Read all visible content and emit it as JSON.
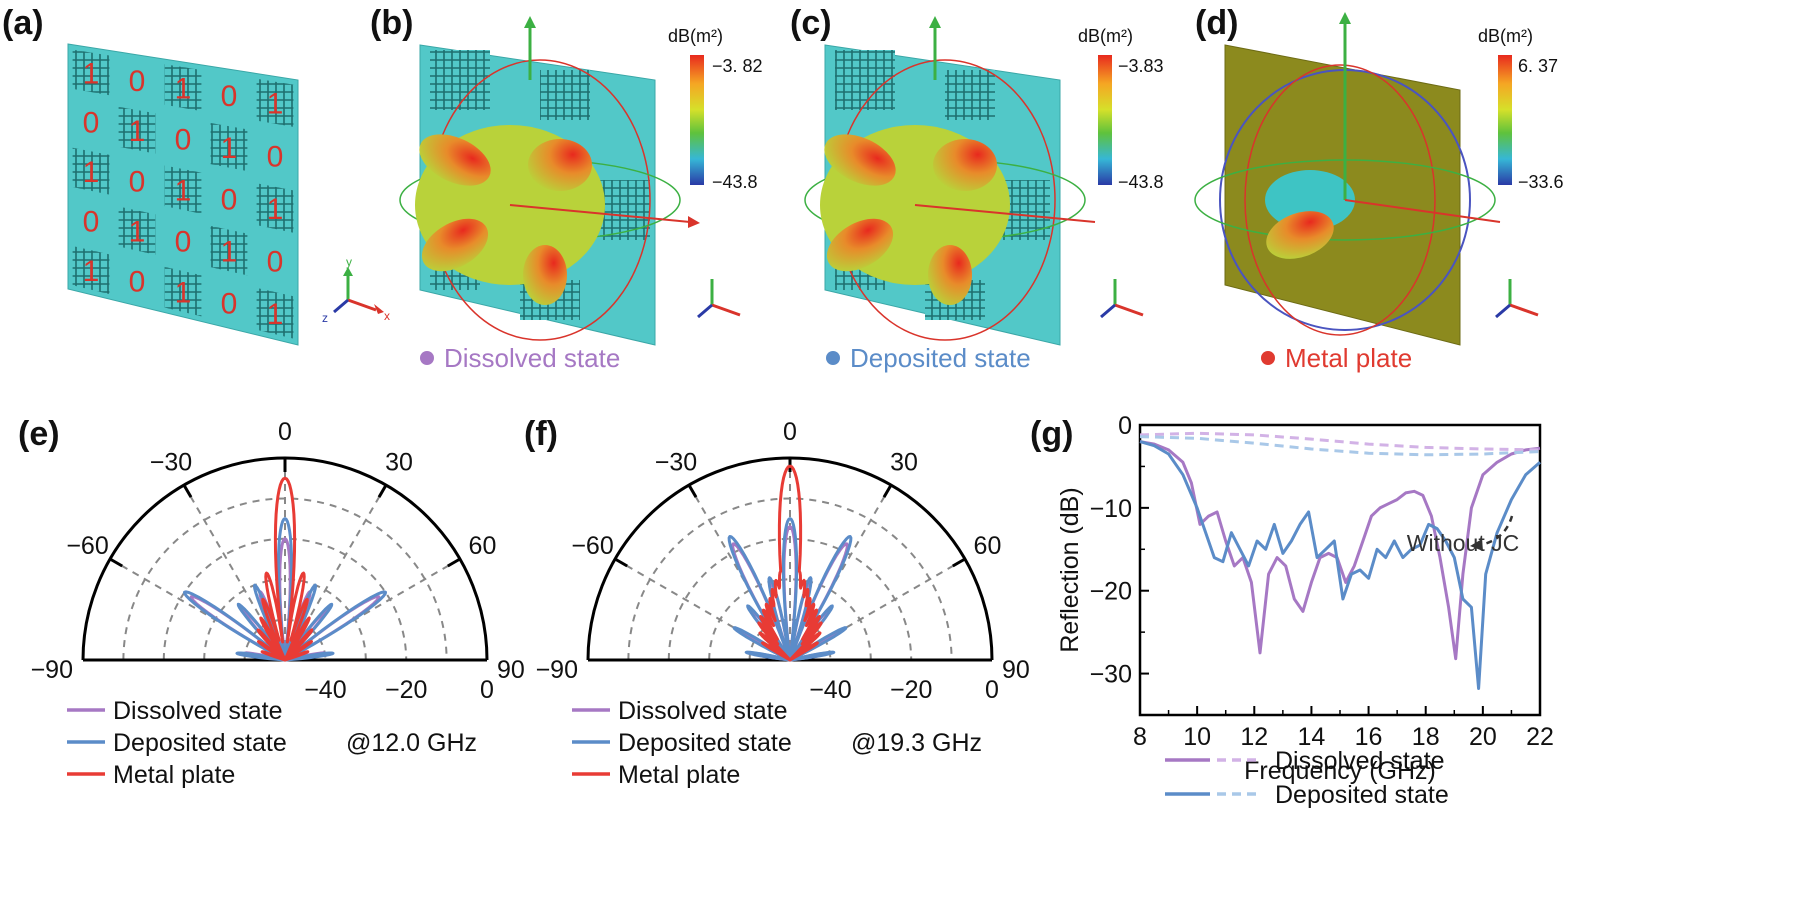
{
  "panels": {
    "a": "(a)",
    "b": "(b)",
    "c": "(c)",
    "d": "(d)",
    "e": "(e)",
    "f": "(f)",
    "g": "(g)"
  },
  "metasurface_code": [
    [
      "1",
      "0",
      "1",
      "0",
      "1"
    ],
    [
      "0",
      "1",
      "0",
      "1",
      "0"
    ],
    [
      "1",
      "0",
      "1",
      "0",
      "1"
    ],
    [
      "0",
      "1",
      "0",
      "1",
      "0"
    ],
    [
      "1",
      "0",
      "1",
      "0",
      "1"
    ]
  ],
  "axis_letters": {
    "x": "x",
    "y": "y",
    "z": "z"
  },
  "colorbars": [
    {
      "unit": "dB(m²)",
      "max": "−3. 82",
      "min": "−43.8"
    },
    {
      "unit": "dB(m²)",
      "max": "−3.83",
      "min": "−43.8"
    },
    {
      "unit": "dB(m²)",
      "max": "6. 37",
      "min": "−33.6"
    }
  ],
  "captions": [
    {
      "text": "Dissolved state",
      "color": "#a678c4"
    },
    {
      "text": "Deposited state",
      "color": "#5b8cc8"
    },
    {
      "text": "Metal plate",
      "color": "#e03a30"
    }
  ],
  "colors": {
    "dissolved": "#a678c4",
    "deposited": "#5b8cc8",
    "metal": "#e83b35",
    "dissolved_light": "#d2b2e6",
    "deposited_light": "#a9c8e8",
    "surface": "#52c8c8",
    "plate": "#8c8a1e"
  },
  "chart_data": [
    {
      "type": "polar",
      "panel": "(e)",
      "annotation": "@12.0 GHz",
      "angle_ticks": [
        "0",
        "30",
        "−30",
        "60",
        "−60",
        "90",
        "−90"
      ],
      "radial_ticks": [
        "−40",
        "−20",
        "0"
      ],
      "radial_range_dB": [
        -50,
        0
      ],
      "legend": [
        "Dissolved state",
        "Deposited state",
        "Metal plate"
      ],
      "series": [
        {
          "name": "Dissolved state",
          "lobes": [
            [
              0,
              -20
            ],
            [
              -20,
              -32
            ],
            [
              20,
              -32
            ],
            [
              -40,
              -34
            ],
            [
              40,
              -34
            ],
            [
              -56,
              -22
            ],
            [
              56,
              -22
            ],
            [
              -80,
              -40
            ],
            [
              80,
              -40
            ]
          ]
        },
        {
          "name": "Deposited state",
          "lobes": [
            [
              0,
              -15
            ],
            [
              -22,
              -30
            ],
            [
              22,
              -30
            ],
            [
              -40,
              -32
            ],
            [
              40,
              -32
            ],
            [
              -56,
              -20
            ],
            [
              56,
              -20
            ],
            [
              -82,
              -38
            ],
            [
              82,
              -38
            ]
          ]
        },
        {
          "name": "Metal plate",
          "lobes": [
            [
              0,
              -5
            ],
            [
              -12,
              -28
            ],
            [
              12,
              -28
            ],
            [
              -20,
              -34
            ],
            [
              20,
              -34
            ],
            [
              -30,
              -38
            ],
            [
              30,
              -38
            ],
            [
              -42,
              -40
            ],
            [
              42,
              -40
            ],
            [
              -55,
              -42
            ],
            [
              55,
              -42
            ],
            [
              -70,
              -44
            ],
            [
              70,
              -44
            ]
          ]
        }
      ]
    },
    {
      "type": "polar",
      "panel": "(f)",
      "annotation": "@19.3 GHz",
      "angle_ticks": [
        "0",
        "30",
        "−30",
        "60",
        "−60",
        "90",
        "−90"
      ],
      "radial_ticks": [
        "−40",
        "−20",
        "0"
      ],
      "radial_range_dB": [
        -50,
        0
      ],
      "legend": [
        "Dissolved state",
        "Deposited state",
        "Metal plate"
      ],
      "series": [
        {
          "name": "Dissolved state",
          "lobes": [
            [
              0,
              -17
            ],
            [
              -14,
              -30
            ],
            [
              14,
              -30
            ],
            [
              -26,
              -18
            ],
            [
              26,
              -18
            ],
            [
              -38,
              -34
            ],
            [
              38,
              -34
            ],
            [
              -60,
              -36
            ],
            [
              60,
              -36
            ],
            [
              -80,
              -40
            ],
            [
              80,
              -40
            ]
          ]
        },
        {
          "name": "Deposited state",
          "lobes": [
            [
              0,
              -15
            ],
            [
              -14,
              -29
            ],
            [
              14,
              -29
            ],
            [
              -26,
              -16
            ],
            [
              26,
              -16
            ],
            [
              -38,
              -33
            ],
            [
              38,
              -33
            ],
            [
              -60,
              -34
            ],
            [
              60,
              -34
            ],
            [
              -80,
              -39
            ],
            [
              80,
              -39
            ]
          ]
        },
        {
          "name": "Metal plate",
          "lobes": [
            [
              0,
              -2
            ],
            [
              -6,
              -28
            ],
            [
              6,
              -28
            ],
            [
              -10,
              -30
            ],
            [
              10,
              -30
            ],
            [
              -14,
              -32
            ],
            [
              14,
              -32
            ],
            [
              -18,
              -34
            ],
            [
              18,
              -34
            ],
            [
              -23,
              -35
            ],
            [
              23,
              -35
            ],
            [
              -28,
              -36
            ],
            [
              28,
              -36
            ],
            [
              -34,
              -37
            ],
            [
              34,
              -37
            ],
            [
              -40,
              -38
            ],
            [
              40,
              -38
            ],
            [
              -48,
              -40
            ],
            [
              48,
              -40
            ],
            [
              -58,
              -42
            ],
            [
              58,
              -42
            ]
          ]
        }
      ]
    },
    {
      "type": "line",
      "panel": "(g)",
      "xlabel": "Frequency (GHz)",
      "ylabel": "Reflection (dB)",
      "xlim": [
        8,
        22
      ],
      "ylim": [
        -35,
        0
      ],
      "xticks": [
        "8",
        "10",
        "12",
        "14",
        "16",
        "18",
        "20",
        "22"
      ],
      "yticks": [
        "0",
        "−10",
        "−20",
        "−30"
      ],
      "annotation": "Without JC",
      "legend": [
        "Dissolved state",
        "Deposited state"
      ],
      "series": [
        {
          "name": "Dissolved state",
          "style": "solid",
          "x": [
            8,
            8.5,
            9,
            9.5,
            9.8,
            10.1,
            10.4,
            10.7,
            11.0,
            11.3,
            11.6,
            11.9,
            12.2,
            12.5,
            12.8,
            13.1,
            13.4,
            13.7,
            14.0,
            14.3,
            14.6,
            14.9,
            15.2,
            15.5,
            15.8,
            16.1,
            16.4,
            16.7,
            17.0,
            17.3,
            17.6,
            17.9,
            18.2,
            18.5,
            18.8,
            19.05,
            19.3,
            19.6,
            20.0,
            20.5,
            21.0,
            21.5,
            22
          ],
          "y": [
            -2,
            -2.3,
            -3,
            -4.5,
            -7,
            -12,
            -11,
            -10.5,
            -14,
            -17,
            -16,
            -19,
            -27.5,
            -18,
            -16,
            -17,
            -21,
            -22.5,
            -19,
            -16,
            -15.5,
            -16,
            -19,
            -17,
            -14,
            -11,
            -10,
            -9.5,
            -9,
            -8.2,
            -8,
            -8.5,
            -11,
            -16,
            -22,
            -28.2,
            -18,
            -10,
            -6,
            -4.5,
            -3.5,
            -3,
            -2.8
          ]
        },
        {
          "name": "Deposited state",
          "style": "solid",
          "x": [
            8,
            8.5,
            9,
            9.5,
            10,
            10.3,
            10.6,
            10.9,
            11.2,
            11.5,
            11.8,
            12.1,
            12.4,
            12.7,
            13.0,
            13.3,
            13.6,
            13.9,
            14.2,
            14.5,
            14.8,
            15.1,
            15.4,
            15.7,
            16.0,
            16.3,
            16.6,
            16.9,
            17.2,
            17.5,
            17.8,
            18.1,
            18.4,
            18.7,
            19.0,
            19.3,
            19.6,
            19.85,
            20.1,
            20.5,
            21.0,
            21.5,
            22
          ],
          "y": [
            -2,
            -2.5,
            -3.5,
            -6,
            -10,
            -13,
            -16,
            -16.5,
            -13,
            -15,
            -17,
            -14,
            -15,
            -12,
            -15.5,
            -14,
            -12,
            -10.5,
            -16,
            -15,
            -14,
            -21,
            -18,
            -17.5,
            -18.5,
            -15,
            -16,
            -14,
            -16,
            -15,
            -14.5,
            -12,
            -12.5,
            -14,
            -16,
            -21,
            -22,
            -31.8,
            -18,
            -13,
            -9,
            -6,
            -4.5
          ]
        },
        {
          "name": "Dissolved state (without JC)",
          "style": "dashed",
          "x": [
            8,
            10,
            12,
            14,
            16,
            18,
            20,
            22
          ],
          "y": [
            -1.2,
            -1.0,
            -1.2,
            -1.7,
            -2.3,
            -2.7,
            -2.9,
            -3.0
          ]
        },
        {
          "name": "Deposited state (without JC)",
          "style": "dashed",
          "x": [
            8,
            10,
            12,
            14,
            16,
            18,
            20,
            22
          ],
          "y": [
            -1.4,
            -1.6,
            -2.2,
            -2.9,
            -3.4,
            -3.6,
            -3.5,
            -3.2
          ]
        }
      ]
    }
  ]
}
